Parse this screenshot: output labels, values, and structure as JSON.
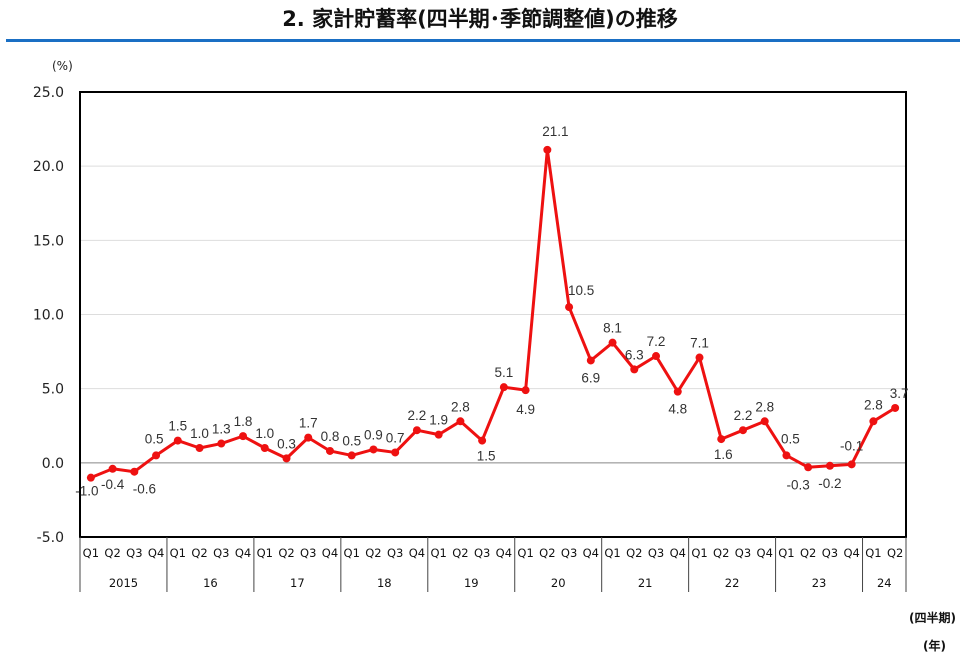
{
  "chart_data": {
    "type": "line",
    "title": "2. 家計貯蓄率(四半期･季節調整値)の推移",
    "yunit": "(%)",
    "xunit_quarter": "(四半期)",
    "xunit_year": "(年)",
    "ylim": [
      -5,
      25
    ],
    "yticks": [
      "-5.0",
      "0.0",
      "5.0",
      "10.0",
      "15.0",
      "20.0",
      "25.0"
    ],
    "grid": true,
    "line_color": "#ee1111",
    "title_rule_color": "#1a6fc4",
    "quarters": [
      "Q1",
      "Q2",
      "Q3",
      "Q4"
    ],
    "years": [
      {
        "label": "2015",
        "quarters": 4
      },
      {
        "label": "16",
        "quarters": 4
      },
      {
        "label": "17",
        "quarters": 4
      },
      {
        "label": "18",
        "quarters": 4
      },
      {
        "label": "19",
        "quarters": 4
      },
      {
        "label": "20",
        "quarters": 4
      },
      {
        "label": "21",
        "quarters": 4
      },
      {
        "label": "22",
        "quarters": 4
      },
      {
        "label": "23",
        "quarters": 4
      },
      {
        "label": "24",
        "quarters": 2
      }
    ],
    "series": [
      {
        "values": [
          -1.0,
          -0.4,
          -0.6,
          0.5,
          1.5,
          1.0,
          1.3,
          1.8,
          1.0,
          0.3,
          1.7,
          0.8,
          0.5,
          0.9,
          0.7,
          2.2,
          1.9,
          2.8,
          1.5,
          5.1,
          4.9,
          21.1,
          10.5,
          6.9,
          8.1,
          6.3,
          7.2,
          4.8,
          7.1,
          1.6,
          2.2,
          2.8,
          0.5,
          -0.3,
          -0.2,
          -0.1,
          2.8,
          3.7
        ]
      }
    ]
  }
}
